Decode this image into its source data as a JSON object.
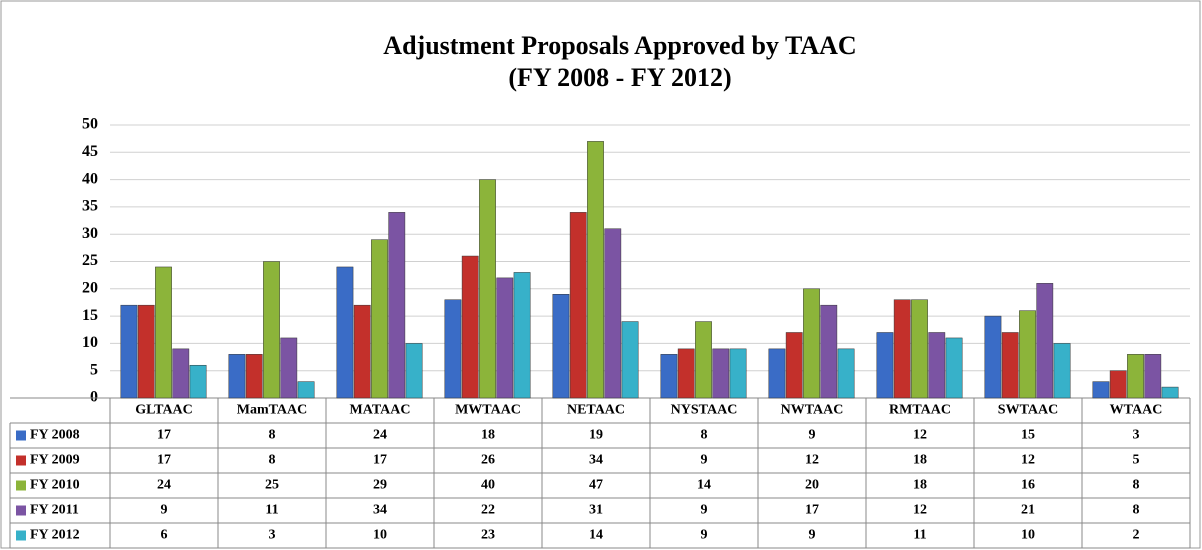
{
  "chart_data": {
    "type": "bar",
    "title": "Adjustment Proposals Approved by TAAC",
    "subtitle": "(FY 2008 - FY 2012)",
    "categories": [
      "GLTAAC",
      "MamTAAC",
      "MATAAC",
      "MWTAAC",
      "NETAAC",
      "NYSTAAC",
      "NWTAAC",
      "RMTAAC",
      "SWTAAC",
      "WTAAC"
    ],
    "series": [
      {
        "name": "FY 2008",
        "color": "#3a6cc6",
        "values": [
          17,
          8,
          24,
          18,
          19,
          8,
          9,
          12,
          15,
          3
        ]
      },
      {
        "name": "FY 2009",
        "color": "#c3302b",
        "values": [
          17,
          8,
          17,
          26,
          34,
          9,
          12,
          18,
          12,
          5
        ]
      },
      {
        "name": "FY 2010",
        "color": "#8cb43a",
        "values": [
          24,
          25,
          29,
          40,
          47,
          14,
          20,
          18,
          16,
          8
        ]
      },
      {
        "name": "FY 2011",
        "color": "#7b54a3",
        "values": [
          9,
          11,
          34,
          22,
          31,
          9,
          17,
          12,
          21,
          8
        ]
      },
      {
        "name": "FY 2012",
        "color": "#37b1c9",
        "values": [
          6,
          3,
          10,
          23,
          14,
          9,
          9,
          11,
          10,
          2
        ]
      }
    ],
    "ylim": [
      0,
      50
    ],
    "yticks": [
      0,
      5,
      10,
      15,
      20,
      25,
      30,
      35,
      40,
      45,
      50
    ],
    "grid": true
  }
}
